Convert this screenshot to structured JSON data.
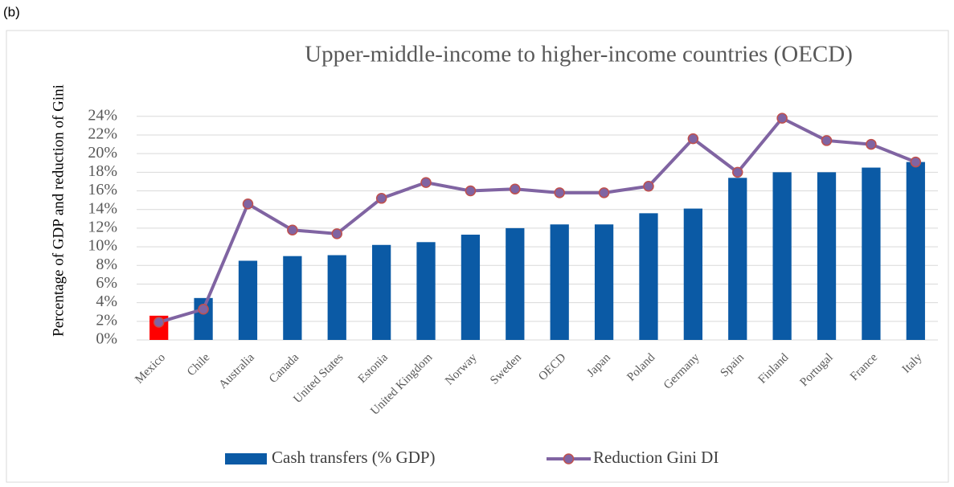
{
  "panel_label": "(b)",
  "chart_data": {
    "type": "bar-line",
    "title": "Upper-middle-income to higher-income countries (OECD)",
    "y_label": "Percentage of GDP and reduction of Gini",
    "categories": [
      "Mexico",
      "Chile",
      "Australia",
      "Canada",
      "United States",
      "Estonia",
      "United Kingdom",
      "Norway",
      "Sweden",
      "OECD",
      "Japan",
      "Poland",
      "Germany",
      "Spain",
      "Finland",
      "Portugal",
      "France",
      "Italy"
    ],
    "series": [
      {
        "name": "Cash transfers (% GDP)",
        "type": "bar",
        "color": "#0b5aa5",
        "colors": [
          "#ff0000",
          "#0b5aa5",
          "#0b5aa5",
          "#0b5aa5",
          "#0b5aa5",
          "#0b5aa5",
          "#0b5aa5",
          "#0b5aa5",
          "#0b5aa5",
          "#0b5aa5",
          "#0b5aa5",
          "#0b5aa5",
          "#0b5aa5",
          "#0b5aa5",
          "#0b5aa5",
          "#0b5aa5",
          "#0b5aa5",
          "#0b5aa5"
        ],
        "values": [
          2.6,
          4.5,
          8.5,
          9.0,
          9.1,
          10.2,
          10.5,
          11.3,
          12.0,
          12.4,
          12.4,
          13.6,
          14.1,
          17.4,
          18.0,
          18.0,
          18.5,
          19.1
        ]
      },
      {
        "name": "Reduction Gini DI",
        "type": "line",
        "color": "#8064a2",
        "marker_edge_color": "#c0504d",
        "values": [
          1.9,
          3.3,
          14.6,
          11.8,
          11.4,
          15.2,
          16.9,
          16.0,
          16.2,
          15.8,
          15.8,
          16.5,
          21.6,
          18.0,
          23.8,
          21.4,
          21.0,
          19.1
        ]
      }
    ],
    "ylim": [
      0,
      24.5
    ],
    "yticks": [
      {
        "value": 0,
        "label": "0%"
      },
      {
        "value": 2,
        "label": "2%"
      },
      {
        "value": 4,
        "label": "4%"
      },
      {
        "value": 6,
        "label": "6%"
      },
      {
        "value": 8,
        "label": "8%"
      },
      {
        "value": 10,
        "label": "10%"
      },
      {
        "value": 12,
        "label": "12%"
      },
      {
        "value": 14,
        "label": "14%"
      },
      {
        "value": 16,
        "label": "16%"
      },
      {
        "value": 18,
        "label": "18%"
      },
      {
        "value": 20,
        "label": "20%"
      },
      {
        "value": 22,
        "label": "22%"
      },
      {
        "value": 24,
        "label": "24%"
      }
    ],
    "grid": true,
    "legend": "bottom"
  }
}
